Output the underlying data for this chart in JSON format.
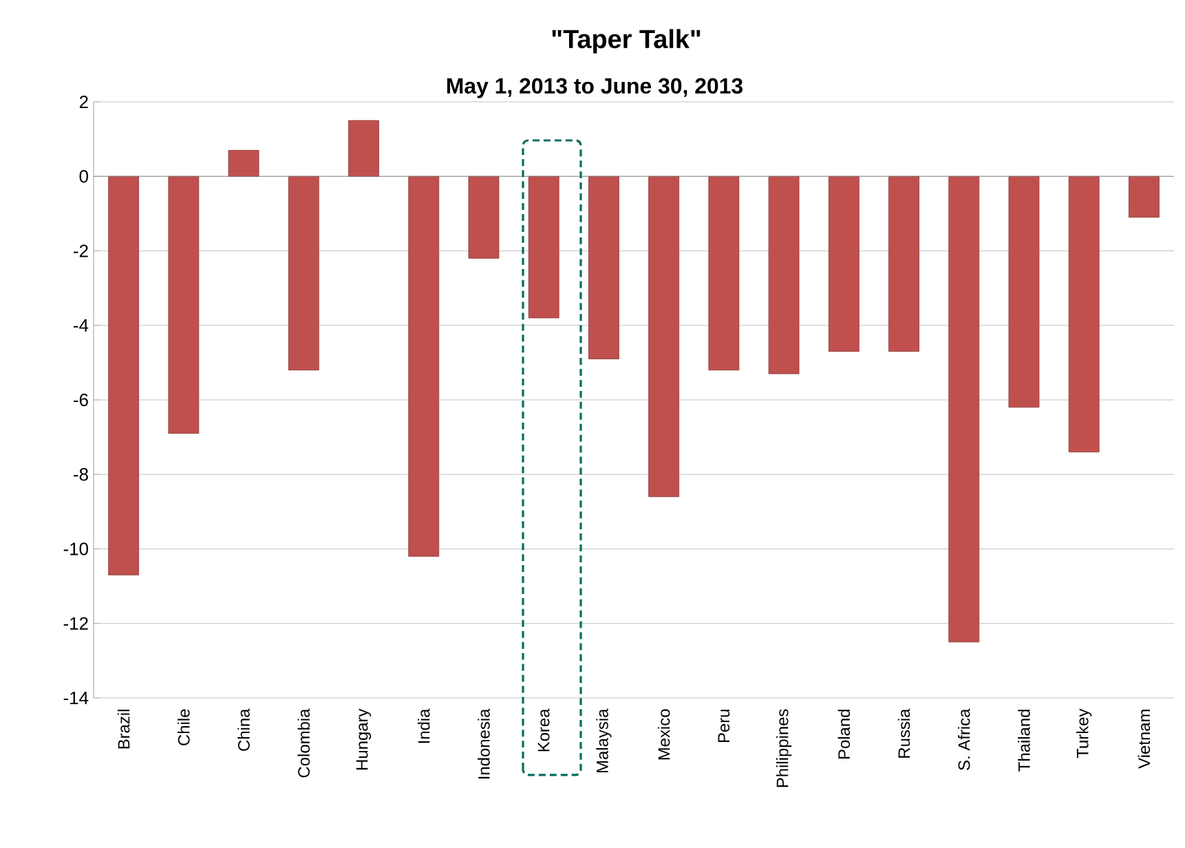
{
  "chart_data": {
    "type": "bar",
    "title": "\"Taper Talk\"",
    "subtitle": "May 1, 2013 to June 30, 2013",
    "categories": [
      "Brazil",
      "Chile",
      "China",
      "Colombia",
      "Hungary",
      "India",
      "Indonesia",
      "Korea",
      "Malaysia",
      "Mexico",
      "Peru",
      "Philippines",
      "Poland",
      "Russia",
      "S. Africa",
      "Thailand",
      "Turkey",
      "Vietnam"
    ],
    "values": [
      -10.7,
      -6.9,
      0.7,
      -5.2,
      1.5,
      -10.2,
      -2.2,
      -3.8,
      -4.9,
      -8.6,
      -5.2,
      -5.3,
      -4.7,
      -4.7,
      -12.5,
      -6.2,
      -7.4,
      -1.1
    ],
    "color": "#c0504d",
    "ylim": [
      -14,
      2
    ],
    "yticks": [
      -14,
      -12,
      -10,
      -8,
      -6,
      -4,
      -2,
      0,
      2
    ],
    "grid": "y"
  }
}
